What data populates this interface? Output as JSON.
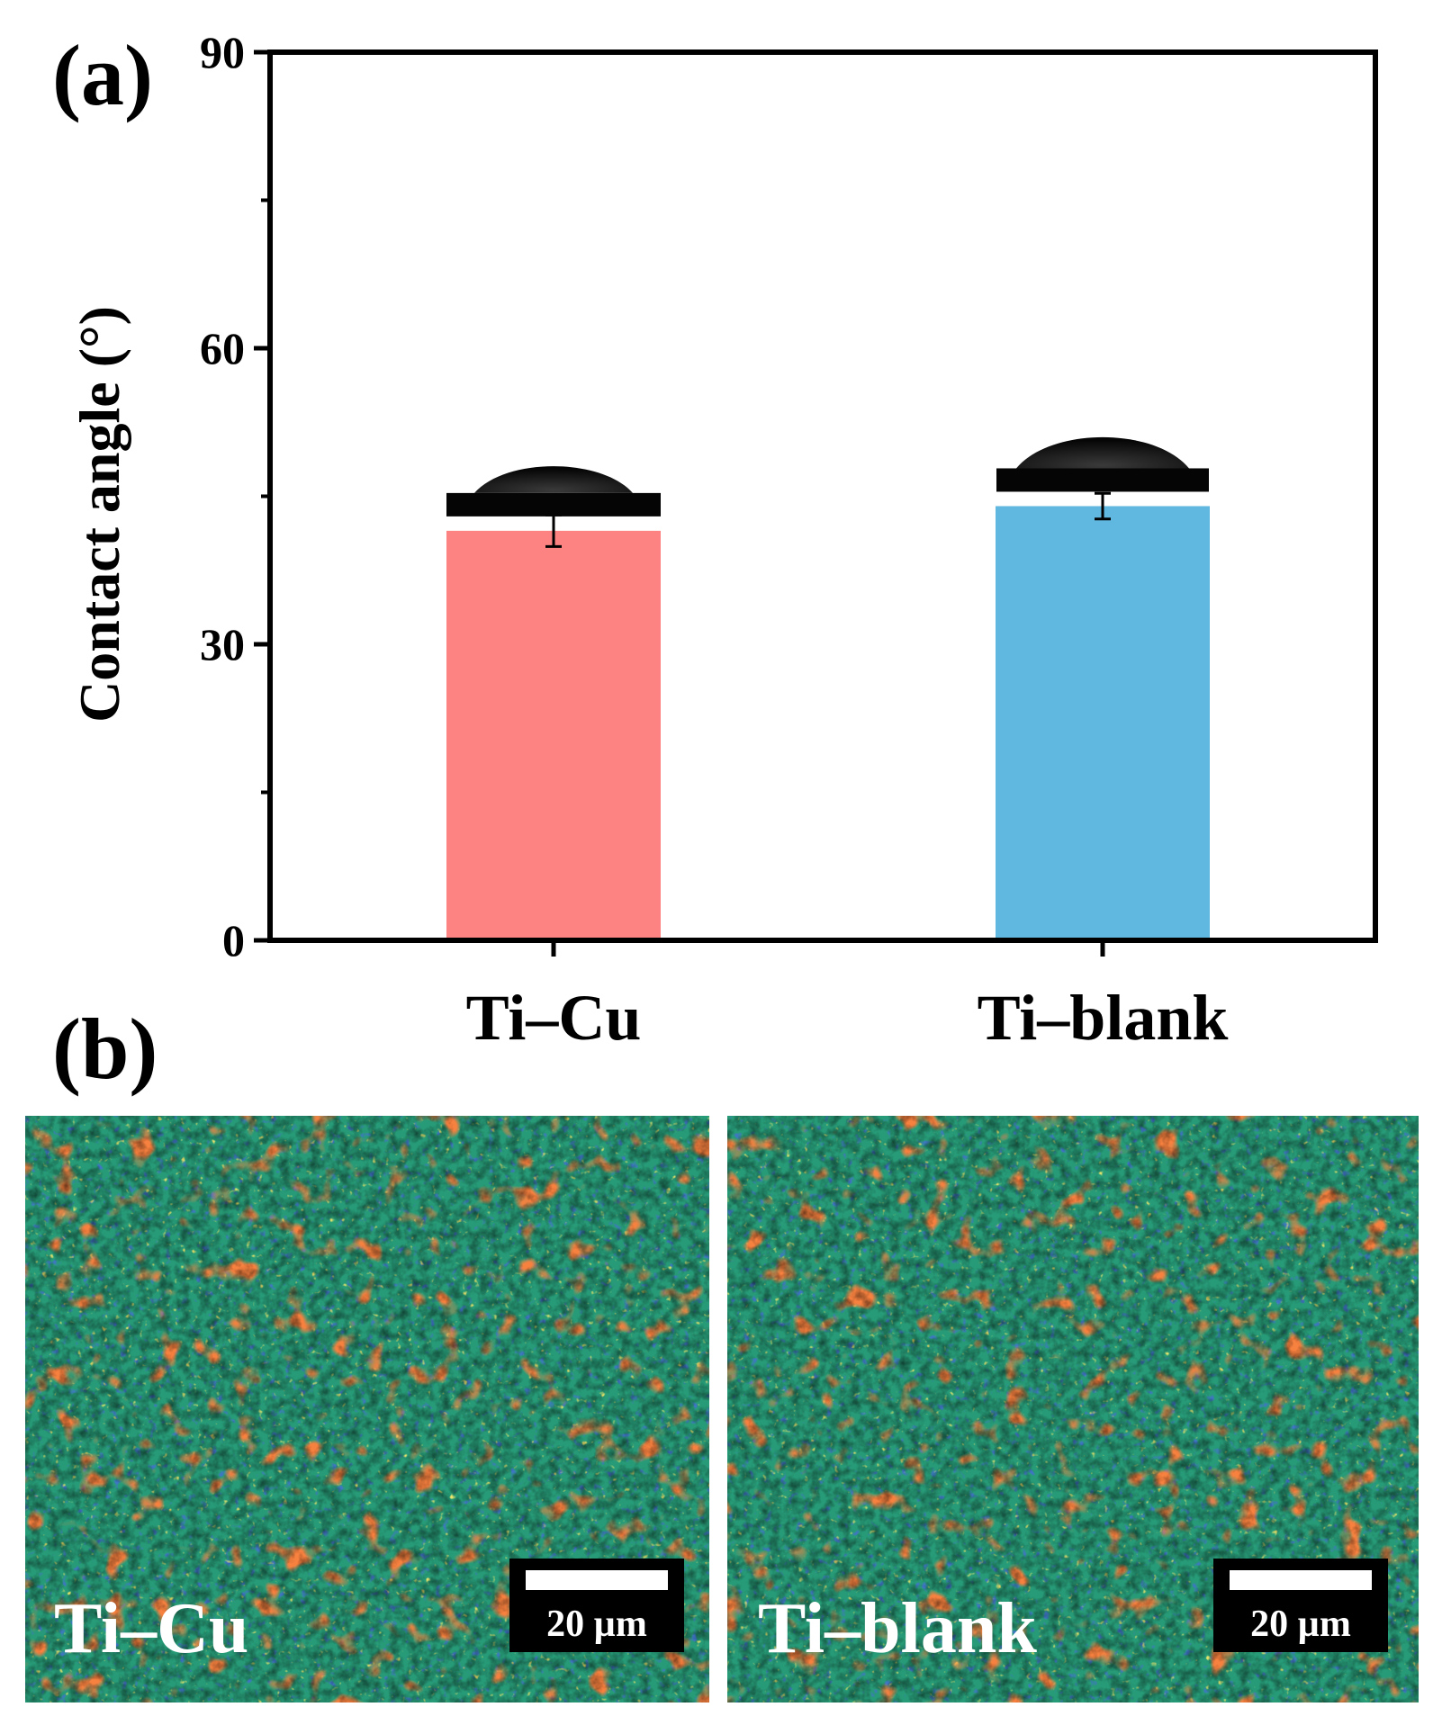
{
  "panel_a_label": "(a)",
  "panel_b_label": "(b)",
  "chart_data": {
    "type": "bar",
    "title": "",
    "xlabel": "",
    "ylabel": "Contact angle (°)",
    "ylim": [
      0,
      90
    ],
    "yticks": [
      0,
      30,
      60,
      90
    ],
    "categories": [
      "Ti–Cu",
      "Ti–blank"
    ],
    "values": [
      41.5,
      44.0
    ],
    "errors": [
      1.6,
      1.3
    ],
    "colors": [
      "#fd8383",
      "#60b8e0"
    ],
    "grid": false,
    "insets": [
      "water-droplet-image",
      "water-droplet-image"
    ]
  },
  "maps": [
    {
      "label": "Ti–Cu",
      "scale_bar": "20 µm"
    },
    {
      "label": "Ti–blank",
      "scale_bar": "20 µm"
    }
  ]
}
